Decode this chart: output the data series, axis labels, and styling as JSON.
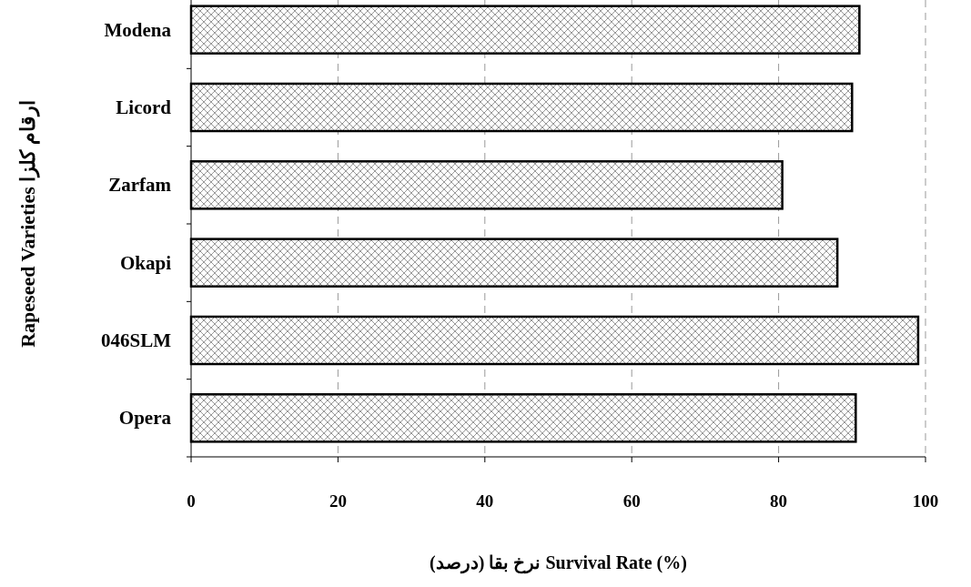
{
  "chart_data": {
    "type": "bar",
    "orientation": "horizontal",
    "categories": [
      "Modena",
      "Licord",
      "Zarfam",
      "Okapi",
      "046SLM",
      "Opera"
    ],
    "values": [
      91,
      90,
      80.5,
      88,
      99,
      90.5
    ],
    "color": "#000000",
    "xlim": [
      0,
      100
    ],
    "xticks": [
      0,
      20,
      40,
      60,
      80,
      100
    ],
    "grid": "x",
    "xlabel": "نرخ بقا (درصد) Survival Rate (%)",
    "ylabel": "Rapeseed Varieties ارقام کلزا"
  }
}
